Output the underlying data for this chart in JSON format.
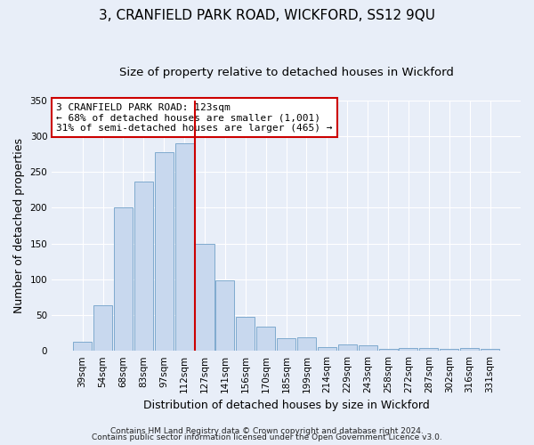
{
  "title": "3, CRANFIELD PARK ROAD, WICKFORD, SS12 9QU",
  "subtitle": "Size of property relative to detached houses in Wickford",
  "xlabel": "Distribution of detached houses by size in Wickford",
  "ylabel": "Number of detached properties",
  "bar_labels": [
    "39sqm",
    "54sqm",
    "68sqm",
    "83sqm",
    "97sqm",
    "112sqm",
    "127sqm",
    "141sqm",
    "156sqm",
    "170sqm",
    "185sqm",
    "199sqm",
    "214sqm",
    "229sqm",
    "243sqm",
    "258sqm",
    "272sqm",
    "287sqm",
    "302sqm",
    "316sqm",
    "331sqm"
  ],
  "bar_heights": [
    13,
    64,
    200,
    237,
    278,
    290,
    150,
    98,
    47,
    34,
    18,
    19,
    5,
    9,
    8,
    3,
    4,
    4,
    3,
    4,
    3
  ],
  "bar_color": "#c8d8ee",
  "bar_edge_color": "#7faace",
  "vline_color": "#cc0000",
  "vline_index": 6,
  "annotation_box_text": "3 CRANFIELD PARK ROAD: 123sqm\n← 68% of detached houses are smaller (1,001)\n31% of semi-detached houses are larger (465) →",
  "annotation_box_color": "#ffffff",
  "annotation_box_edge_color": "#cc0000",
  "ylim": [
    0,
    350
  ],
  "yticks": [
    0,
    50,
    100,
    150,
    200,
    250,
    300,
    350
  ],
  "footer1": "Contains HM Land Registry data © Crown copyright and database right 2024.",
  "footer2": "Contains public sector information licensed under the Open Government Licence v3.0.",
  "fig_bg_color": "#e8eef8",
  "plot_bg_color": "#e8eef8",
  "grid_color": "#ffffff",
  "title_fontsize": 11,
  "subtitle_fontsize": 9.5,
  "axis_label_fontsize": 9,
  "tick_fontsize": 7.5,
  "annotation_fontsize": 8,
  "footer_fontsize": 6.5
}
